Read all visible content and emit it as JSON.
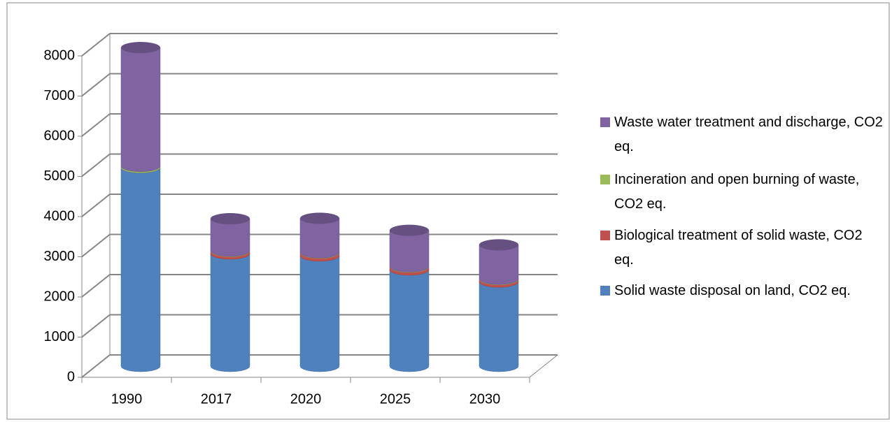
{
  "chart_data": {
    "type": "stacked-cylinder",
    "categories": [
      "1990",
      "2017",
      "2020",
      "2025",
      "2030"
    ],
    "series": [
      {
        "name": "Solid waste disposal on land, CO2 eq.",
        "color": "#4f81bd",
        "values": [
          4950,
          2800,
          2750,
          2400,
          2100
        ]
      },
      {
        "name": "Biological treatment of solid waste, CO2 eq.",
        "color": "#c0504d",
        "values": [
          0,
          60,
          70,
          70,
          60
        ]
      },
      {
        "name": "Incineration and open burning of waste, CO2 eq.",
        "color": "#9bbb59",
        "values": [
          30,
          10,
          10,
          10,
          10
        ]
      },
      {
        "name": "Waste water treatment and discharge, CO2 eq.",
        "color": "#8064a2",
        "values": [
          2950,
          800,
          850,
          900,
          850
        ]
      }
    ],
    "ylim": [
      0,
      8000
    ],
    "yticks": [
      0,
      1000,
      2000,
      3000,
      4000,
      5000,
      6000,
      7000,
      8000
    ],
    "grid": true,
    "legend": "right"
  }
}
